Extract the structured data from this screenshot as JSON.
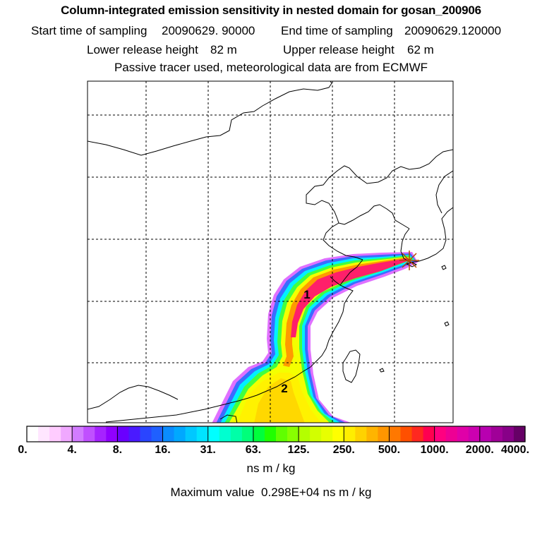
{
  "header": {
    "title": "Column-integrated emission sensitivity in nested domain for gosan_200906",
    "start_label": "Start time of sampling",
    "start_value": "20090629. 90000",
    "end_label": "End time of sampling",
    "end_value": "20090629.120000",
    "lower_label": "Lower release height",
    "lower_value": "82 m",
    "upper_label": "Upper release height",
    "upper_value": "62 m",
    "note": "Passive tracer used, meteorological data are from ECMWF"
  },
  "map": {
    "release_markers": [
      {
        "label": "1"
      },
      {
        "label": "2"
      }
    ]
  },
  "legend": {
    "ticks": [
      "0.",
      "4.",
      "8.",
      "16.",
      "31.",
      "63.",
      "125.",
      "250.",
      "500.",
      "1000.",
      "2000.",
      "4000."
    ],
    "colors": [
      "#ffffff",
      "#ffe6ff",
      "#ffccff",
      "#f0a8ff",
      "#d27cff",
      "#c050ff",
      "#a623ff",
      "#9000ff",
      "#6a00ff",
      "#4a1aff",
      "#2a45ff",
      "#1f60ff",
      "#0a8cff",
      "#00a8ff",
      "#00c8ff",
      "#00e4ff",
      "#00ffff",
      "#00ffd0",
      "#00ffa8",
      "#00ff7a",
      "#00ff3c",
      "#20ff00",
      "#60ff00",
      "#88ff00",
      "#b4ff00",
      "#d2ff00",
      "#e8ff00",
      "#ffff00",
      "#ffee00",
      "#ffd200",
      "#ffb400",
      "#ff9600",
      "#ff7800",
      "#ff5000",
      "#ff2820",
      "#ff0050",
      "#ff0080",
      "#ee0094",
      "#e000a8",
      "#cc00b0",
      "#b800b0",
      "#a00098",
      "#880088",
      "#660066"
    ],
    "units": "ns m / kg",
    "max_label": "Maximum value",
    "max_value": "0.298E+04",
    "max_units": "ns m / kg"
  }
}
